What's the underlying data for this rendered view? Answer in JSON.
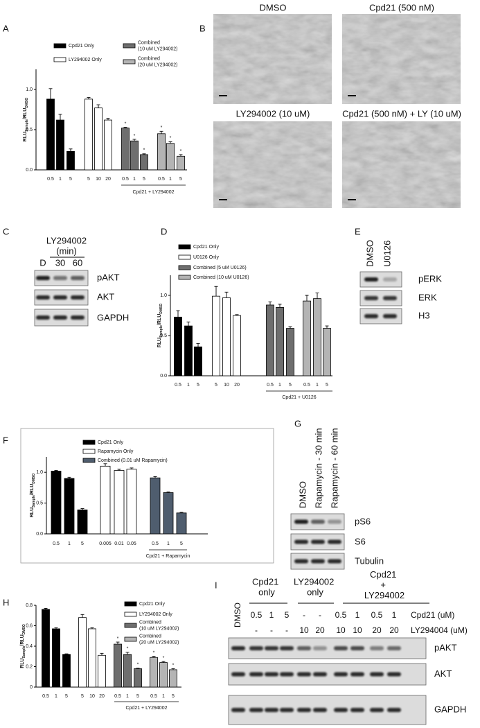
{
  "panel_labels": [
    "A",
    "B",
    "C",
    "D",
    "E",
    "F",
    "G",
    "H",
    "I"
  ],
  "chart_data": [
    {
      "type": "bar",
      "ylabel": [
        "RLU",
        "Sample",
        "/RLU",
        "DMSO"
      ],
      "ylim": [
        0,
        1.25
      ],
      "yticks": [
        {
          "value": 0,
          "label": "0.0"
        },
        {
          "value": 0.5,
          "label": "0.5"
        },
        {
          "value": 1,
          "label": "1.0"
        }
      ],
      "series": [
        {
          "name": "Cpd21 Only",
          "color": "#000000",
          "categories": [
            "0.5",
            "1",
            "5"
          ],
          "values": [
            0.88,
            0.62,
            0.23
          ],
          "errors": [
            0.13,
            0.07,
            0.03
          ]
        },
        {
          "name": "LY294002 Only",
          "color": "#ffffff",
          "categories": [
            "5",
            "10",
            "20"
          ],
          "values": [
            0.88,
            0.77,
            0.62
          ],
          "errors": [
            0.02,
            0.04,
            0.02
          ]
        },
        {
          "name": "Combined (10 uM LY294002)",
          "color": "#6e6e6e",
          "categories": [
            "0.5",
            "1",
            "5"
          ],
          "values": [
            0.52,
            0.36,
            0.19
          ],
          "errors": [
            0.01,
            0.02,
            0.01
          ],
          "significance": [
            "*",
            "*",
            "*"
          ]
        },
        {
          "name": "Combined (20 uM LY294002)",
          "color": "#b4b4b4",
          "categories": [
            "0.5",
            "1",
            "5"
          ],
          "values": [
            0.45,
            0.33,
            0.17
          ],
          "errors": [
            0.03,
            0.02,
            0.02
          ],
          "significance": [
            "*",
            "*",
            "*"
          ]
        }
      ],
      "group_label": "Cpd21 + LY294002"
    },
    {
      "type": "bar",
      "ylabel": [
        "RLU",
        "Sample",
        "/RLU",
        "DMSO"
      ],
      "ylim": [
        0,
        1.25
      ],
      "yticks": [
        {
          "value": 0,
          "label": "0.0"
        },
        {
          "value": 0.5,
          "label": "0.5"
        },
        {
          "value": 1,
          "label": "1.0"
        }
      ],
      "series": [
        {
          "name": "Cpd21 Only",
          "color": "#000000",
          "categories": [
            "0.5",
            "1",
            "5"
          ],
          "values": [
            0.73,
            0.62,
            0.36
          ],
          "errors": [
            0.08,
            0.05,
            0.04
          ]
        },
        {
          "name": "U0126 Only",
          "color": "#ffffff",
          "categories": [
            "5",
            "10",
            "20"
          ],
          "values": [
            0.99,
            0.97,
            0.75
          ],
          "errors": [
            0.12,
            0.07,
            0.01
          ]
        },
        {
          "name": "Combined (5 uM U0126)",
          "color": "#6e6e6e",
          "categories": [
            "0.5",
            "1",
            "5"
          ],
          "values": [
            0.88,
            0.85,
            0.59
          ],
          "errors": [
            0.04,
            0.04,
            0.02
          ]
        },
        {
          "name": "Combined (10 uM U0126)",
          "color": "#b4b4b4",
          "categories": [
            "0.5",
            "1",
            "5"
          ],
          "values": [
            0.93,
            0.96,
            0.59
          ],
          "errors": [
            0.07,
            0.07,
            0.03
          ]
        }
      ],
      "group_label": "Cpd21 + U0126"
    },
    {
      "type": "bar",
      "ylabel": [
        "RLU",
        "Sample",
        "/RLU",
        "DMSO"
      ],
      "ylim": [
        0,
        1.25
      ],
      "yticks": [
        {
          "value": 0,
          "label": "0.0"
        },
        {
          "value": 0.5,
          "label": "0.5"
        },
        {
          "value": 1,
          "label": "1.0"
        }
      ],
      "series": [
        {
          "name": "Cpd21 Only",
          "color": "#000000",
          "categories": [
            "0.5",
            "1",
            "5"
          ],
          "values": [
            1.02,
            0.9,
            0.39
          ],
          "errors": [
            0.01,
            0.02,
            0.02
          ]
        },
        {
          "name": "Rapamycin Only",
          "color": "#ffffff",
          "categories": [
            "0.005",
            "0.01",
            "0.05"
          ],
          "values": [
            1.1,
            1.03,
            1.05
          ],
          "errors": [
            0.04,
            0.02,
            0.02
          ]
        },
        {
          "name": "Combined (0.01 uM Rapamycin)",
          "color": "#4f5d6e",
          "categories": [
            "0.5",
            "1",
            "5"
          ],
          "values": [
            0.91,
            0.67,
            0.34
          ],
          "errors": [
            0.02,
            0.01,
            0.01
          ]
        }
      ],
      "group_label": "Cpd21 + Rapamycin"
    },
    {
      "type": "bar",
      "ylabel": [
        "RLU",
        "Sample",
        "/RLU",
        "DMSO"
      ],
      "ylim": [
        0,
        0.8
      ],
      "yticks": [
        0,
        {
          "value": 0.2,
          "label": "0.2"
        },
        {
          "value": 0.4,
          "label": "0.4"
        },
        {
          "value": 0.6,
          "label": "0.6"
        },
        {
          "value": 0.8,
          "label": "0.8"
        }
      ],
      "series": [
        {
          "name": "Cpd21 Only",
          "color": "#000000",
          "categories": [
            "0.5",
            "1",
            "5"
          ],
          "values": [
            0.76,
            0.57,
            0.32
          ],
          "errors": [
            0.01,
            0.01,
            0.005
          ]
        },
        {
          "name": "LY294002 Only",
          "color": "#ffffff",
          "categories": [
            "5",
            "10",
            "20"
          ],
          "values": [
            0.68,
            0.57,
            0.31
          ],
          "errors": [
            0.03,
            0.01,
            0.02
          ]
        },
        {
          "name": "Combined (10 uM LY294002)",
          "color": "#6e6e6e",
          "categories": [
            "0.5",
            "1",
            "5"
          ],
          "values": [
            0.42,
            0.32,
            0.18
          ],
          "errors": [
            0.02,
            0.02,
            0.005
          ],
          "significance": [
            "*",
            "*",
            "*"
          ]
        },
        {
          "name": "Combined (20 uM LY294002)",
          "color": "#b4b4b4",
          "categories": [
            "0.5",
            "1",
            "5"
          ],
          "values": [
            0.29,
            0.24,
            0.17
          ],
          "errors": [
            0.01,
            0.01,
            0.01
          ],
          "significance": [
            "*",
            "*",
            "*"
          ]
        }
      ],
      "group_label": "Cpd21 + LY294002"
    }
  ],
  "micrographs": {
    "labels": [
      "DMSO",
      "Cpd21 (500 nM)",
      "LY294002 (10 uM)",
      "Cpd21 (500 nM) + LY (10 uM)"
    ]
  },
  "blot_c": {
    "header": "LY294002",
    "unit": "(min)",
    "lanes": [
      "D",
      "30",
      "60"
    ],
    "rows": [
      "pAKT",
      "AKT",
      "GAPDH"
    ]
  },
  "blot_e": {
    "lanes": [
      "DMSO",
      "U0126"
    ],
    "rows": [
      "pERK",
      "ERK",
      "H3"
    ]
  },
  "blot_g": {
    "lanes": [
      "DMSO",
      "Rapamycin - 30 min",
      "Rapamycin - 60 min"
    ],
    "rows": [
      "pS6",
      "S6",
      "Tubulin"
    ]
  },
  "blot_i": {
    "groups": [
      "Cpd21 only",
      "LY294002 only",
      "Cpd21 + LY294002"
    ],
    "dmso": "DMSO",
    "cpd21_label": "Cpd21 (uM)",
    "cpd21": [
      0.5,
      1,
      5,
      "-",
      "-",
      0.5,
      1,
      0.5,
      1
    ],
    "ly_label": "LY294004 (uM)",
    "ly": [
      "-",
      "-",
      "-",
      10,
      20,
      10,
      10,
      20,
      20
    ],
    "rows": [
      "pAKT",
      "AKT",
      "GAPDH"
    ]
  }
}
